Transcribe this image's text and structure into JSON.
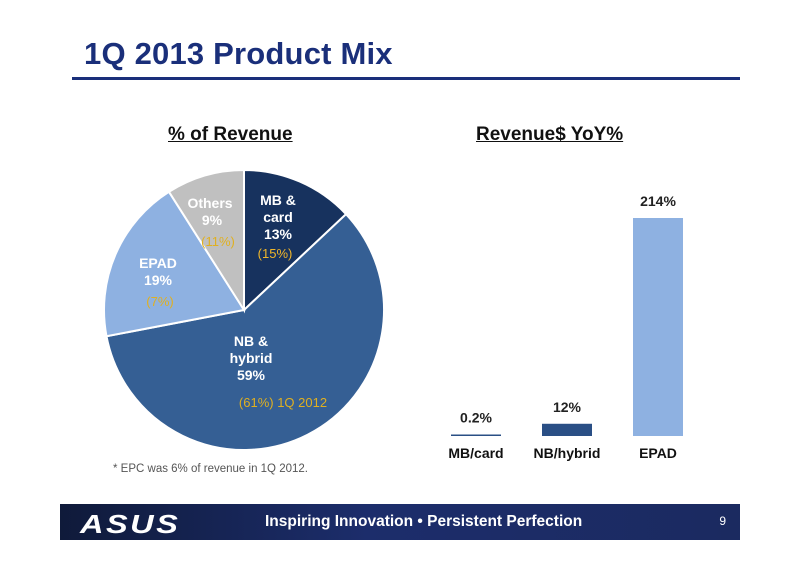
{
  "slide": {
    "title": "1Q 2013 Product Mix",
    "footnote": "* EPC was 6% of revenue in 1Q 2012.",
    "page_number": "9"
  },
  "footer": {
    "logo_text": "ASUS",
    "slogan": "Inspiring Innovation • Persistent Perfection"
  },
  "colors": {
    "mb_card": "#17325e",
    "nb_hybrid": "#355f94",
    "epad": "#8eb1e1",
    "others": "#c0c0c0",
    "bar_fill": "#8eb1e1",
    "bar_dark": "#2a4f85",
    "title": "#1a2f7a",
    "prior_label": "#e0b020"
  },
  "chart_data": [
    {
      "type": "pie",
      "title": "% of Revenue",
      "slices": [
        {
          "lines": [
            "MB &",
            "card",
            "13%"
          ],
          "value": 13,
          "prior": "(15%)",
          "color_key": "mb_card"
        },
        {
          "lines": [
            "NB &",
            "hybrid",
            "59%"
          ],
          "value": 59,
          "prior": "(61%) 1Q 2012",
          "color_key": "nb_hybrid"
        },
        {
          "lines": [
            "EPAD",
            "19%"
          ],
          "value": 19,
          "prior": "(7%)",
          "color_key": "epad"
        },
        {
          "lines": [
            "Others",
            "9%"
          ],
          "value": 9,
          "prior": "(11%)",
          "color_key": "others"
        }
      ]
    },
    {
      "type": "bar",
      "title": "Revenue$  YoY%",
      "categories": [
        "MB/card",
        "NB/hybrid",
        "EPAD"
      ],
      "values": [
        0.2,
        12,
        214
      ],
      "value_labels": [
        "0.2%",
        "12%",
        "214%"
      ]
    }
  ]
}
